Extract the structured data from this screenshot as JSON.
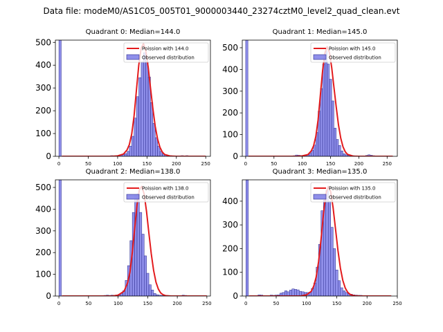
{
  "suptitle": "Data file: modeM0/AS1C05_005T01_9000003440_23274cztM0_level2_quad_clean.evt",
  "colors": {
    "bar_fill": "#7b7be6",
    "bar_edge": "#2b2b8c",
    "poisson_line": "#e31a1c",
    "axes": "#000000"
  },
  "chart_data": [
    {
      "type": "bar",
      "title": "Quadrant 0: Median=144.0",
      "xlim": [
        -6,
        258
      ],
      "ylim": [
        0,
        510
      ],
      "xticks": [
        0,
        50,
        100,
        150,
        200,
        250
      ],
      "yticks": [
        0,
        100,
        200,
        300,
        400,
        500
      ],
      "bin_width": 4,
      "legend": {
        "line_label": "Poission with 144.0",
        "bar_label": "Observed distribution",
        "position": "upper-right"
      },
      "bins": [
        [
          0,
          510
        ],
        [
          88,
          3
        ],
        [
          92,
          2
        ],
        [
          96,
          2
        ],
        [
          100,
          3
        ],
        [
          104,
          5
        ],
        [
          108,
          8
        ],
        [
          112,
          12
        ],
        [
          116,
          22
        ],
        [
          120,
          45
        ],
        [
          124,
          88
        ],
        [
          128,
          168
        ],
        [
          132,
          262
        ],
        [
          136,
          345
        ],
        [
          140,
          415
        ],
        [
          144,
          455
        ],
        [
          148,
          415
        ],
        [
          152,
          348
        ],
        [
          156,
          236
        ],
        [
          160,
          145
        ],
        [
          164,
          82
        ],
        [
          168,
          45
        ],
        [
          172,
          22
        ],
        [
          176,
          10
        ],
        [
          180,
          6
        ],
        [
          184,
          4
        ],
        [
          188,
          3
        ],
        [
          192,
          2
        ],
        [
          200,
          2
        ],
        [
          208,
          3
        ],
        [
          216,
          3
        ],
        [
          224,
          2
        ]
      ],
      "poisson_curve": {
        "x": [
          5,
          90,
          100,
          110,
          116,
          120,
          124,
          128,
          132,
          136,
          140,
          144,
          148,
          152,
          156,
          160,
          164,
          168,
          172,
          176,
          180,
          190,
          200,
          250
        ],
        "y": [
          0,
          0,
          2,
          10,
          28,
          52,
          98,
          178,
          290,
          400,
          474,
          495,
          462,
          392,
          300,
          210,
          132,
          76,
          40,
          19,
          8,
          1,
          0,
          0
        ]
      }
    },
    {
      "type": "bar",
      "title": "Quadrant 1: Median=145.0",
      "xlim": [
        -6,
        268
      ],
      "ylim": [
        0,
        535
      ],
      "xticks": [
        0,
        50,
        100,
        150,
        200,
        250
      ],
      "yticks": [
        0,
        100,
        200,
        300,
        400,
        500
      ],
      "bin_width": 4,
      "legend": {
        "line_label": "Poission with 145.0",
        "bar_label": "Observed distribution",
        "position": "upper-right"
      },
      "bins": [
        [
          0,
          535
        ],
        [
          84,
          3
        ],
        [
          88,
          6
        ],
        [
          92,
          5
        ],
        [
          96,
          4
        ],
        [
          100,
          3
        ],
        [
          104,
          4
        ],
        [
          108,
          8
        ],
        [
          112,
          14
        ],
        [
          116,
          28
        ],
        [
          120,
          52
        ],
        [
          124,
          110
        ],
        [
          128,
          208
        ],
        [
          132,
          312
        ],
        [
          136,
          425
        ],
        [
          140,
          485
        ],
        [
          144,
          425
        ],
        [
          148,
          355
        ],
        [
          152,
          255
        ],
        [
          156,
          130
        ],
        [
          160,
          78
        ],
        [
          164,
          50
        ],
        [
          168,
          25
        ],
        [
          172,
          12
        ],
        [
          176,
          7
        ],
        [
          180,
          4
        ],
        [
          184,
          3
        ],
        [
          188,
          3
        ],
        [
          196,
          2
        ],
        [
          212,
          4
        ],
        [
          216,
          7
        ],
        [
          220,
          5
        ],
        [
          224,
          3
        ]
      ],
      "poisson_curve": {
        "x": [
          5,
          90,
          100,
          110,
          116,
          120,
          124,
          128,
          132,
          136,
          140,
          144,
          148,
          152,
          156,
          160,
          164,
          168,
          172,
          176,
          180,
          190,
          200,
          260
        ],
        "y": [
          0,
          0,
          2,
          8,
          25,
          48,
          92,
          168,
          282,
          395,
          475,
          505,
          478,
          410,
          318,
          228,
          145,
          84,
          44,
          21,
          9,
          1,
          0,
          0
        ]
      }
    },
    {
      "type": "bar",
      "title": "Quadrant 2: Median=138.0",
      "xlim": [
        -6,
        256
      ],
      "ylim": [
        0,
        535
      ],
      "xticks": [
        0,
        50,
        100,
        150,
        200,
        250
      ],
      "yticks": [
        0,
        100,
        200,
        300,
        400,
        500
      ],
      "bin_width": 4,
      "legend": {
        "line_label": "Poission with 138.0",
        "bar_label": "Observed distribution",
        "position": "upper-right"
      },
      "bins": [
        [
          0,
          535
        ],
        [
          76,
          3
        ],
        [
          80,
          4
        ],
        [
          84,
          3
        ],
        [
          88,
          4
        ],
        [
          92,
          3
        ],
        [
          96,
          5
        ],
        [
          100,
          8
        ],
        [
          104,
          12
        ],
        [
          108,
          25
        ],
        [
          112,
          72
        ],
        [
          116,
          140
        ],
        [
          120,
          255
        ],
        [
          124,
          385
        ],
        [
          128,
          465
        ],
        [
          132,
          470
        ],
        [
          136,
          385
        ],
        [
          140,
          285
        ],
        [
          144,
          185
        ],
        [
          148,
          105
        ],
        [
          152,
          52
        ],
        [
          156,
          28
        ],
        [
          160,
          12
        ],
        [
          164,
          6
        ],
        [
          168,
          4
        ],
        [
          172,
          3
        ],
        [
          176,
          2
        ],
        [
          180,
          2
        ],
        [
          204,
          2
        ],
        [
          208,
          4
        ],
        [
          212,
          3
        ],
        [
          216,
          2
        ]
      ],
      "poisson_curve": {
        "x": [
          5,
          90,
          100,
          110,
          116,
          120,
          124,
          128,
          132,
          136,
          140,
          144,
          148,
          152,
          156,
          160,
          164,
          168,
          172,
          176,
          180,
          190,
          200,
          250
        ],
        "y": [
          0,
          0,
          4,
          22,
          60,
          110,
          200,
          310,
          420,
          490,
          505,
          470,
          390,
          290,
          195,
          118,
          64,
          32,
          14,
          6,
          2,
          0,
          0,
          0
        ]
      }
    },
    {
      "type": "bar",
      "title": "Quadrant 3: Median=135.0",
      "xlim": [
        -6,
        250
      ],
      "ylim": [
        0,
        490
      ],
      "xticks": [
        0,
        50,
        100,
        150,
        200,
        250
      ],
      "yticks": [
        0,
        100,
        200,
        300,
        400
      ],
      "bin_width": 4,
      "legend": {
        "line_label": "Poission with 135.0",
        "bar_label": "Observed distribution",
        "position": "upper-right"
      },
      "bins": [
        [
          0,
          490
        ],
        [
          20,
          5
        ],
        [
          24,
          4
        ],
        [
          40,
          4
        ],
        [
          44,
          3
        ],
        [
          48,
          4
        ],
        [
          52,
          5
        ],
        [
          56,
          12
        ],
        [
          60,
          15
        ],
        [
          64,
          22
        ],
        [
          68,
          18
        ],
        [
          72,
          25
        ],
        [
          76,
          30
        ],
        [
          80,
          28
        ],
        [
          84,
          26
        ],
        [
          88,
          20
        ],
        [
          92,
          18
        ],
        [
          96,
          15
        ],
        [
          100,
          15
        ],
        [
          104,
          16
        ],
        [
          108,
          32
        ],
        [
          112,
          55
        ],
        [
          116,
          122
        ],
        [
          120,
          218
        ],
        [
          124,
          360
        ],
        [
          128,
          405
        ],
        [
          132,
          445
        ],
        [
          136,
          400
        ],
        [
          140,
          290
        ],
        [
          144,
          200
        ],
        [
          148,
          110
        ],
        [
          152,
          65
        ],
        [
          156,
          35
        ],
        [
          160,
          22
        ],
        [
          164,
          15
        ],
        [
          168,
          10
        ],
        [
          172,
          8
        ],
        [
          176,
          5
        ],
        [
          180,
          4
        ],
        [
          184,
          3
        ],
        [
          188,
          3
        ],
        [
          192,
          2
        ],
        [
          196,
          2
        ],
        [
          200,
          2
        ],
        [
          208,
          2
        ],
        [
          216,
          2
        ],
        [
          228,
          2
        ]
      ],
      "poisson_curve": {
        "x": [
          5,
          90,
          100,
          108,
          112,
          116,
          120,
          124,
          128,
          132,
          136,
          140,
          144,
          148,
          152,
          156,
          160,
          164,
          168,
          172,
          176,
          180,
          190,
          240
        ],
        "y": [
          0,
          0,
          5,
          20,
          42,
          80,
          145,
          238,
          345,
          430,
          462,
          440,
          372,
          282,
          192,
          118,
          66,
          34,
          16,
          7,
          3,
          1,
          0,
          0
        ]
      }
    }
  ]
}
